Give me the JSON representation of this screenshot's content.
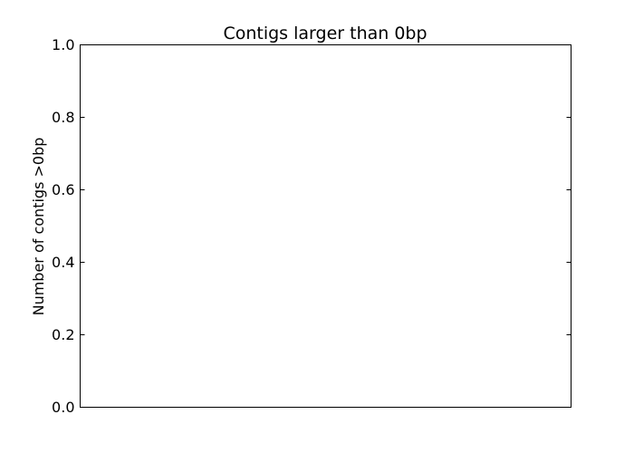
{
  "chart_data": {
    "type": "line",
    "title": "Contigs larger than 0bp",
    "xlabel": "",
    "ylabel": "Number of contigs >0bp",
    "ylim": [
      0,
      1
    ],
    "yticks": [
      "0.0",
      "0.2",
      "0.4",
      "0.6",
      "0.8",
      "1.0"
    ],
    "xticks": [],
    "series": [],
    "grid": false,
    "legend": "none"
  }
}
